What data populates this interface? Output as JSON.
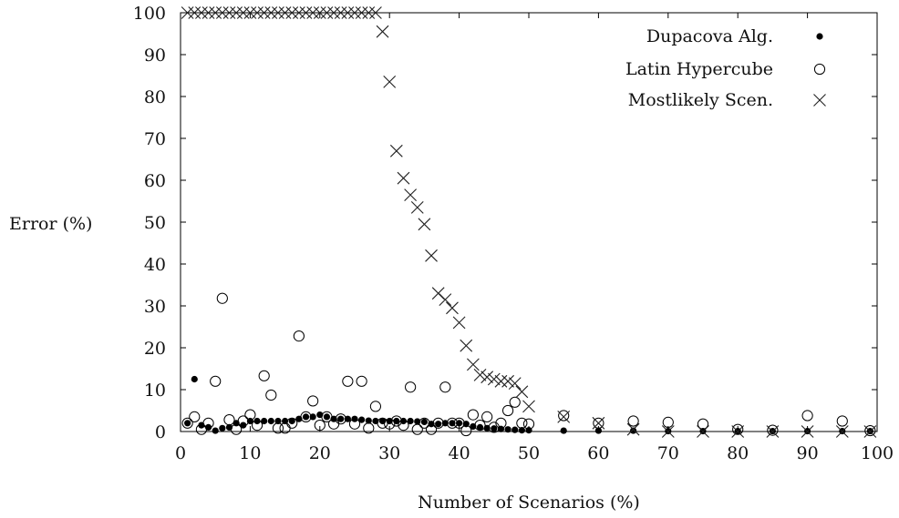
{
  "chart_data": {
    "type": "scatter",
    "xlabel": "Number of Scenarios (%)",
    "ylabel": "Error (%)",
    "xlim": [
      0,
      100
    ],
    "ylim": [
      0,
      100
    ],
    "x_ticks": [
      0,
      10,
      20,
      30,
      40,
      50,
      60,
      70,
      80,
      90,
      100
    ],
    "y_ticks": [
      0,
      10,
      20,
      30,
      40,
      50,
      60,
      70,
      80,
      90,
      100
    ],
    "grid": false,
    "legend_position": "top-right",
    "series": [
      {
        "name": "Dupacova Alg.",
        "marker": "filled-circle",
        "color": "#000000",
        "x": [
          1,
          2,
          3,
          4,
          5,
          6,
          7,
          8,
          9,
          10,
          11,
          12,
          13,
          14,
          15,
          16,
          17,
          18,
          19,
          20,
          21,
          22,
          23,
          24,
          25,
          26,
          27,
          28,
          29,
          30,
          31,
          32,
          33,
          34,
          35,
          36,
          37,
          38,
          39,
          40,
          41,
          42,
          43,
          44,
          45,
          46,
          47,
          48,
          49,
          50,
          55,
          60,
          65,
          70,
          75,
          80,
          85,
          90,
          95,
          99
        ],
        "y": [
          2,
          12.5,
          1.5,
          1,
          0.2,
          0.8,
          1,
          2,
          1.5,
          2.5,
          2.5,
          2.5,
          2.5,
          2.5,
          2.5,
          2.5,
          3,
          3.5,
          3.5,
          4,
          3.5,
          3,
          3,
          3,
          3,
          2.8,
          2.6,
          2.5,
          2.5,
          2.5,
          2.5,
          2.5,
          2.5,
          2.4,
          2.3,
          1.8,
          1.8,
          2,
          2,
          2,
          1.8,
          1.2,
          1,
          0.8,
          0.7,
          0.6,
          0.5,
          0.4,
          0.3,
          0.3,
          0.2,
          0.2,
          0.2,
          0.1,
          0.1,
          0.1,
          0.1,
          0.1,
          0.1,
          0.1
        ]
      },
      {
        "name": "Latin Hypercube",
        "marker": "open-circle",
        "color": "#000000",
        "x": [
          1,
          2,
          3,
          4,
          5,
          6,
          7,
          8,
          9,
          10,
          11,
          12,
          13,
          14,
          15,
          16,
          17,
          18,
          19,
          20,
          21,
          22,
          23,
          24,
          25,
          26,
          27,
          28,
          29,
          30,
          31,
          32,
          33,
          34,
          35,
          36,
          37,
          38,
          39,
          40,
          41,
          42,
          43,
          44,
          45,
          46,
          47,
          48,
          49,
          50,
          55,
          60,
          65,
          70,
          75,
          80,
          85,
          90,
          95,
          99
        ],
        "y": [
          2,
          3.5,
          0.5,
          2,
          12,
          31.8,
          2.8,
          0.5,
          2.5,
          4,
          1.5,
          13.3,
          8.7,
          0.8,
          0.8,
          2,
          22.8,
          3.5,
          7.3,
          1.5,
          3.5,
          1.8,
          3,
          12,
          1.8,
          12,
          0.8,
          6,
          2,
          1.8,
          2.5,
          1.5,
          10.6,
          0.5,
          2,
          0.5,
          2,
          10.6,
          2,
          2,
          0.2,
          4,
          1.5,
          3.5,
          1,
          2,
          5,
          7,
          2,
          1.8,
          3.8,
          2,
          2.5,
          2.2,
          1.8,
          0.5,
          0.3,
          3.8,
          2.5,
          0.2
        ]
      },
      {
        "name": "Mostlikely Scen.",
        "marker": "x",
        "color": "#000000",
        "x": [
          1,
          2,
          3,
          4,
          5,
          6,
          7,
          8,
          9,
          10,
          11,
          12,
          13,
          14,
          15,
          16,
          17,
          18,
          19,
          20,
          21,
          22,
          23,
          24,
          25,
          26,
          27,
          28,
          29,
          30,
          31,
          32,
          33,
          34,
          35,
          36,
          37,
          38,
          39,
          40,
          41,
          42,
          43,
          44,
          45,
          46,
          47,
          48,
          49,
          50,
          55,
          60,
          65,
          70,
          75,
          80,
          85,
          90,
          95,
          99
        ],
        "y": [
          100,
          100,
          100,
          100,
          100,
          100,
          100,
          100,
          100,
          100,
          100,
          100,
          100,
          100,
          100,
          100,
          100,
          100,
          100,
          100,
          100,
          100,
          100,
          100,
          100,
          100,
          100,
          100,
          95.5,
          83.5,
          67,
          60.5,
          56.5,
          53.5,
          49.5,
          42,
          33,
          31.5,
          29.5,
          26,
          20.5,
          16,
          13.5,
          13,
          12.5,
          12,
          12,
          11.5,
          9.5,
          6,
          3.5,
          2,
          0.5,
          0,
          0,
          0,
          0,
          0,
          0,
          0
        ]
      }
    ]
  }
}
